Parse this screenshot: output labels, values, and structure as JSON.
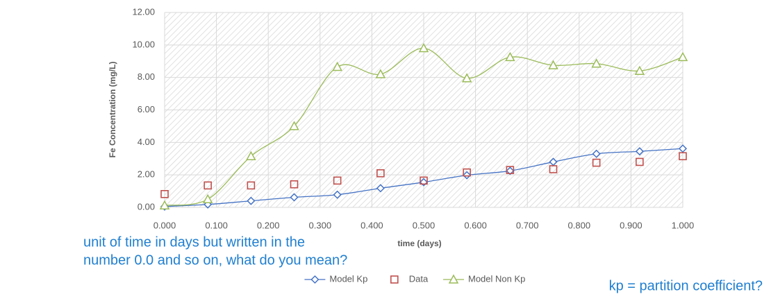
{
  "chart_data": {
    "type": "line",
    "y_label": "Fe Concentration (mg/L)",
    "x_label": "time (days)",
    "x": [
      0,
      0.0833,
      0.1667,
      0.25,
      0.3333,
      0.4167,
      0.5,
      0.5833,
      0.6667,
      0.75,
      0.8333,
      0.9167,
      1.0
    ],
    "series": [
      {
        "name": "Model Kp",
        "color": "#4472c4",
        "marker": "diamond",
        "line": true,
        "values": [
          0.05,
          0.18,
          0.4,
          0.62,
          0.78,
          1.18,
          1.55,
          1.98,
          2.25,
          2.8,
          3.3,
          3.45,
          3.62
        ]
      },
      {
        "name": "Data",
        "color": "#c0504d",
        "marker": "square",
        "line": false,
        "values": [
          0.82,
          1.35,
          1.35,
          1.42,
          1.65,
          2.1,
          1.65,
          2.15,
          2.3,
          2.35,
          2.75,
          2.8,
          3.15
        ]
      },
      {
        "name": "Model Non Kp",
        "color": "#9bbb59",
        "marker": "triangle",
        "line": true,
        "values": [
          0.12,
          0.5,
          3.15,
          5.0,
          8.65,
          8.2,
          9.8,
          7.95,
          9.25,
          8.75,
          8.85,
          8.4,
          9.25
        ]
      }
    ],
    "xlim": [
      0,
      1
    ],
    "xticks": [
      {
        "value": 0,
        "label": "0.000"
      },
      {
        "value": 0.1,
        "label": "0.100"
      },
      {
        "value": 0.2,
        "label": "0.200"
      },
      {
        "value": 0.3,
        "label": "0.300"
      },
      {
        "value": 0.4,
        "label": "0.400"
      },
      {
        "value": 0.5,
        "label": "0.500"
      },
      {
        "value": 0.6,
        "label": "0.600"
      },
      {
        "value": 0.7,
        "label": "0.700"
      },
      {
        "value": 0.8,
        "label": "0.800"
      },
      {
        "value": 0.9,
        "label": "0.900"
      },
      {
        "value": 1,
        "label": "1.000"
      }
    ],
    "ylim": [
      0,
      12
    ],
    "yticks": [
      {
        "value": 0,
        "label": "0.00"
      },
      {
        "value": 2,
        "label": "2.00"
      },
      {
        "value": 4,
        "label": "4.00"
      },
      {
        "value": 6,
        "label": "6.00"
      },
      {
        "value": 8,
        "label": "8.00"
      },
      {
        "value": 10,
        "label": "10.00"
      },
      {
        "value": 12,
        "label": "12.00"
      }
    ],
    "grid": true,
    "smooth": true,
    "legend": "bottom",
    "annotations": [
      "unit of time in days but written in the",
      "number 0.0 and so on, what do you mean?",
      "kp = partition coefficient?"
    ]
  }
}
